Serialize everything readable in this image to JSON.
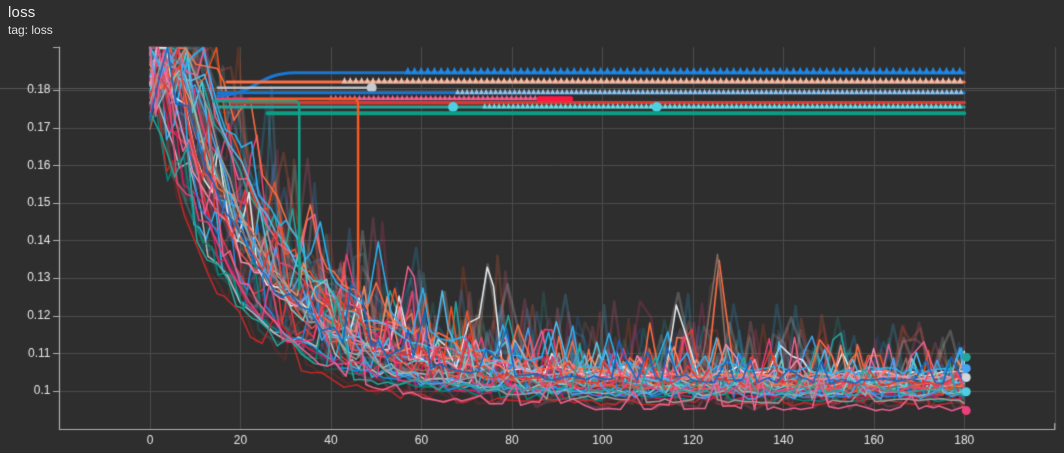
{
  "header": {
    "title": "loss",
    "subtitle": "tag: loss"
  },
  "colors": {
    "background": "#2e2e2e",
    "grid": "#4a4a4a",
    "axis": "#b0b0b0",
    "tick_label": "#e6e6e6",
    "hover_line": "#5b5b5b"
  },
  "chart_data": {
    "type": "line",
    "title": "loss",
    "subtitle": "tag: loss",
    "xlabel": "",
    "ylabel": "",
    "legend": "none",
    "grid": true,
    "xlim": [
      -20,
      202
    ],
    "ylim": [
      0.0898,
      0.1914
    ],
    "xticks": [
      0,
      20,
      40,
      60,
      80,
      100,
      120,
      140,
      160,
      180
    ],
    "xticks_unlabeled": [
      200
    ],
    "yticks": [
      0.1,
      0.11,
      0.12,
      0.13,
      0.14,
      0.15,
      0.16,
      0.17,
      0.18
    ],
    "x_end": 180,
    "hover_line_value": 0.1805,
    "plateau_runs": [
      {
        "color": "#1976d2",
        "value": 0.1846,
        "from": 15,
        "to": 180,
        "width": 3,
        "rise_from": {
          "x": 15,
          "value": 0.1785
        },
        "markers": {
          "shape": "triangle",
          "color": "#1e88e5",
          "from": 57,
          "to": 180,
          "size": 7
        }
      },
      {
        "color": "#ff7043",
        "value": 0.1821,
        "from": 17,
        "to": 180,
        "width": 3,
        "markers": {
          "shape": "triangle",
          "color": "#e5c0b0",
          "from": 43,
          "to": 180,
          "size": 6
        }
      },
      {
        "color": "#b8bec3",
        "value": 0.1806,
        "from": 15,
        "to": 49,
        "width": 2.5,
        "end_dot": {
          "color": "#c5cbd0",
          "r": 5
        }
      },
      {
        "color": "#1976d2",
        "value": 0.1793,
        "from": 15,
        "to": 180,
        "width": 3,
        "markers": {
          "shape": "triangle",
          "color": "#9fc2d8",
          "from": 68,
          "to": 180,
          "size": 5
        }
      },
      {
        "color": "#ec407a",
        "value": 0.1777,
        "from": 15,
        "to": 93,
        "width": 2.5,
        "markers": {
          "shape": "triangle",
          "color": "#f06292",
          "from": 40,
          "to": 86,
          "size": 5
        },
        "end_cap": {
          "color": "#ff1744",
          "from": 86,
          "to": 93,
          "width": 5
        }
      },
      {
        "color": "#d63a32",
        "value": 0.1766,
        "from": 18,
        "to": 180,
        "width": 3.5
      },
      {
        "color": "#26a69a",
        "value": 0.1755,
        "from": 15,
        "to": 180,
        "width": 3,
        "markers": {
          "shape": "triangle",
          "color": "#6fd9e6",
          "from": 74,
          "to": 180,
          "size": 5
        },
        "mid_dots": [
          {
            "x": 67,
            "color": "#4dd0e1",
            "r": 5
          },
          {
            "x": 112,
            "color": "#4dd0e1",
            "r": 5
          }
        ]
      },
      {
        "color": "#0b9e85",
        "value": 0.1738,
        "from": 26,
        "to": 180,
        "width": 4
      },
      {
        "color": "#12a48b",
        "value": 0.177,
        "from": 14,
        "to": 33,
        "width": 2.5,
        "drop_to": 0.127
      },
      {
        "color": "#ff5722",
        "value": 0.1776,
        "from": 22,
        "to": 46,
        "width": 2.5,
        "drop_to": 0.126
      }
    ],
    "noisy_runs": [
      {
        "color": "#ff7043",
        "seed": 11,
        "start": 0.182,
        "floor": 0.1005,
        "tau": 19,
        "hold": 6,
        "noise": 0.011,
        "spikes": [
          [
            126,
            0.036
          ],
          [
            57,
            0.02
          ]
        ]
      },
      {
        "color": "#e53935",
        "seed": 12,
        "start": 0.18,
        "floor": 0.0985,
        "tau": 18,
        "hold": 3,
        "noise": 0.009,
        "spikes": [
          [
            119,
            0.024
          ]
        ]
      },
      {
        "color": "#ec407a",
        "seed": 13,
        "start": 0.184,
        "floor": 0.101,
        "tau": 21,
        "hold": 8,
        "noise": 0.011,
        "spikes": [
          [
            44,
            0.024
          ],
          [
            88,
            0.018
          ]
        ]
      },
      {
        "color": "#42a5f5",
        "seed": 14,
        "start": 0.181,
        "floor": 0.102,
        "tau": 20,
        "hold": 5,
        "noise": 0.01,
        "spikes": [
          [
            146,
            0.014
          ]
        ]
      },
      {
        "color": "#29b6f6",
        "seed": 15,
        "start": 0.179,
        "floor": 0.099,
        "tau": 17,
        "hold": 0,
        "noise": 0.009,
        "spikes": []
      },
      {
        "color": "#26a69a",
        "seed": 16,
        "start": 0.183,
        "floor": 0.1005,
        "tau": 23,
        "hold": 10,
        "noise": 0.01,
        "spikes": [
          [
            152,
            0.019
          ]
        ]
      },
      {
        "color": "#eceff1",
        "seed": 17,
        "start": 0.18,
        "floor": 0.1035,
        "tau": 19,
        "hold": 4,
        "noise": 0.009,
        "spikes": [
          [
            75,
            0.032
          ],
          [
            117,
            0.024
          ]
        ]
      },
      {
        "color": "#bdbdbd",
        "seed": 18,
        "start": 0.178,
        "floor": 0.101,
        "tau": 16,
        "hold": 0,
        "noise": 0.008,
        "spikes": []
      },
      {
        "color": "#f4511e",
        "seed": 19,
        "start": 0.1835,
        "floor": 0.0995,
        "tau": 22,
        "hold": 12,
        "noise": 0.01,
        "spikes": []
      },
      {
        "color": "#d81b60",
        "seed": 20,
        "start": 0.179,
        "floor": 0.0975,
        "tau": 17,
        "hold": 2,
        "noise": 0.008,
        "spikes": []
      },
      {
        "color": "#4dd0e1",
        "seed": 21,
        "start": 0.182,
        "floor": 0.1,
        "tau": 20,
        "hold": 7,
        "noise": 0.009,
        "spikes": []
      },
      {
        "color": "#00897b",
        "seed": 22,
        "start": 0.177,
        "floor": 0.097,
        "tau": 18,
        "hold": 0,
        "noise": 0.008,
        "spikes": []
      },
      {
        "color": "#f06292",
        "seed": 23,
        "start": 0.185,
        "floor": 0.1022,
        "tau": 24,
        "hold": 9,
        "noise": 0.01,
        "spikes": [
          [
            170,
            0.016
          ]
        ]
      },
      {
        "color": "#1e88e5",
        "seed": 24,
        "start": 0.178,
        "floor": 0.0983,
        "tau": 16,
        "hold": 4,
        "noise": 0.009,
        "spikes": []
      },
      {
        "color": "#ff8a65",
        "seed": 25,
        "start": 0.181,
        "floor": 0.103,
        "tau": 21,
        "hold": 6,
        "noise": 0.009,
        "spikes": []
      },
      {
        "color": "#c62828",
        "seed": 26,
        "start": 0.176,
        "floor": 0.096,
        "tau": 15,
        "hold": 0,
        "noise": 0.007,
        "spikes": []
      },
      {
        "color": "#8d6e63",
        "seed": 27,
        "start": 0.18,
        "floor": 0.1,
        "tau": 19,
        "hold": 8,
        "noise": 0.008,
        "spikes": [
          [
            125,
            0.042
          ]
        ]
      },
      {
        "color": "#4fc3f7",
        "seed": 28,
        "start": 0.1845,
        "floor": 0.1015,
        "tau": 22,
        "hold": 11,
        "noise": 0.01,
        "spikes": []
      },
      {
        "color": "#ef5350",
        "seed": 29,
        "start": 0.182,
        "floor": 0.0992,
        "tau": 19,
        "hold": 5,
        "noise": 0.01,
        "spikes": []
      },
      {
        "color": "#f48fb1",
        "seed": 30,
        "start": 0.179,
        "floor": 0.1028,
        "tau": 20,
        "hold": 3,
        "noise": 0.008,
        "spikes": []
      },
      {
        "color": "#80cbc4",
        "seed": 31,
        "start": 0.181,
        "floor": 0.0986,
        "tau": 18,
        "hold": 7,
        "noise": 0.008,
        "spikes": []
      },
      {
        "color": "#ff7043",
        "seed": 32,
        "start": 0.186,
        "floor": 0.1008,
        "tau": 25,
        "hold": 13,
        "noise": 0.011,
        "spikes": []
      },
      {
        "color": "#42a5f5",
        "seed": 33,
        "start": 0.183,
        "floor": 0.0978,
        "tau": 17,
        "hold": 9,
        "noise": 0.01,
        "spikes": []
      },
      {
        "color": "#ec407a",
        "seed": 34,
        "start": 0.177,
        "floor": 0.0996,
        "tau": 16,
        "hold": 2,
        "noise": 0.009,
        "spikes": []
      },
      {
        "color": "#29b6f6",
        "seed": 35,
        "start": 0.1855,
        "floor": 0.1042,
        "tau": 23,
        "hold": 12,
        "noise": 0.01,
        "spikes": []
      },
      {
        "color": "#e53935",
        "seed": 36,
        "start": 0.1785,
        "floor": 0.1012,
        "tau": 20,
        "hold": 5,
        "noise": 0.009,
        "spikes": []
      },
      {
        "color": "#9e9e9e",
        "seed": 37,
        "start": 0.1825,
        "floor": 0.0965,
        "tau": 18,
        "hold": 10,
        "noise": 0.008,
        "spikes": []
      },
      {
        "color": "#26a69a",
        "seed": 38,
        "start": 0.1795,
        "floor": 0.0988,
        "tau": 15,
        "hold": 0,
        "noise": 0.009,
        "spikes": []
      },
      {
        "color": "#f06292",
        "seed": 39,
        "start": 0.18,
        "floor": 0.0947,
        "tau": 17,
        "hold": 4,
        "noise": 0.008,
        "spikes": []
      },
      {
        "color": "#1565c0",
        "seed": 40,
        "start": 0.179,
        "floor": 0.1018,
        "tau": 19,
        "hold": 6,
        "noise": 0.008,
        "spikes": []
      }
    ],
    "end_dots": [
      {
        "color": "#42a5f5",
        "value": 0.106
      },
      {
        "color": "#cfd8dc",
        "value": 0.1036
      },
      {
        "color": "#4dd0e1",
        "value": 0.0998
      },
      {
        "color": "#26a69a",
        "value": 0.109
      },
      {
        "color": "#ec407a",
        "value": 0.0948
      }
    ]
  }
}
